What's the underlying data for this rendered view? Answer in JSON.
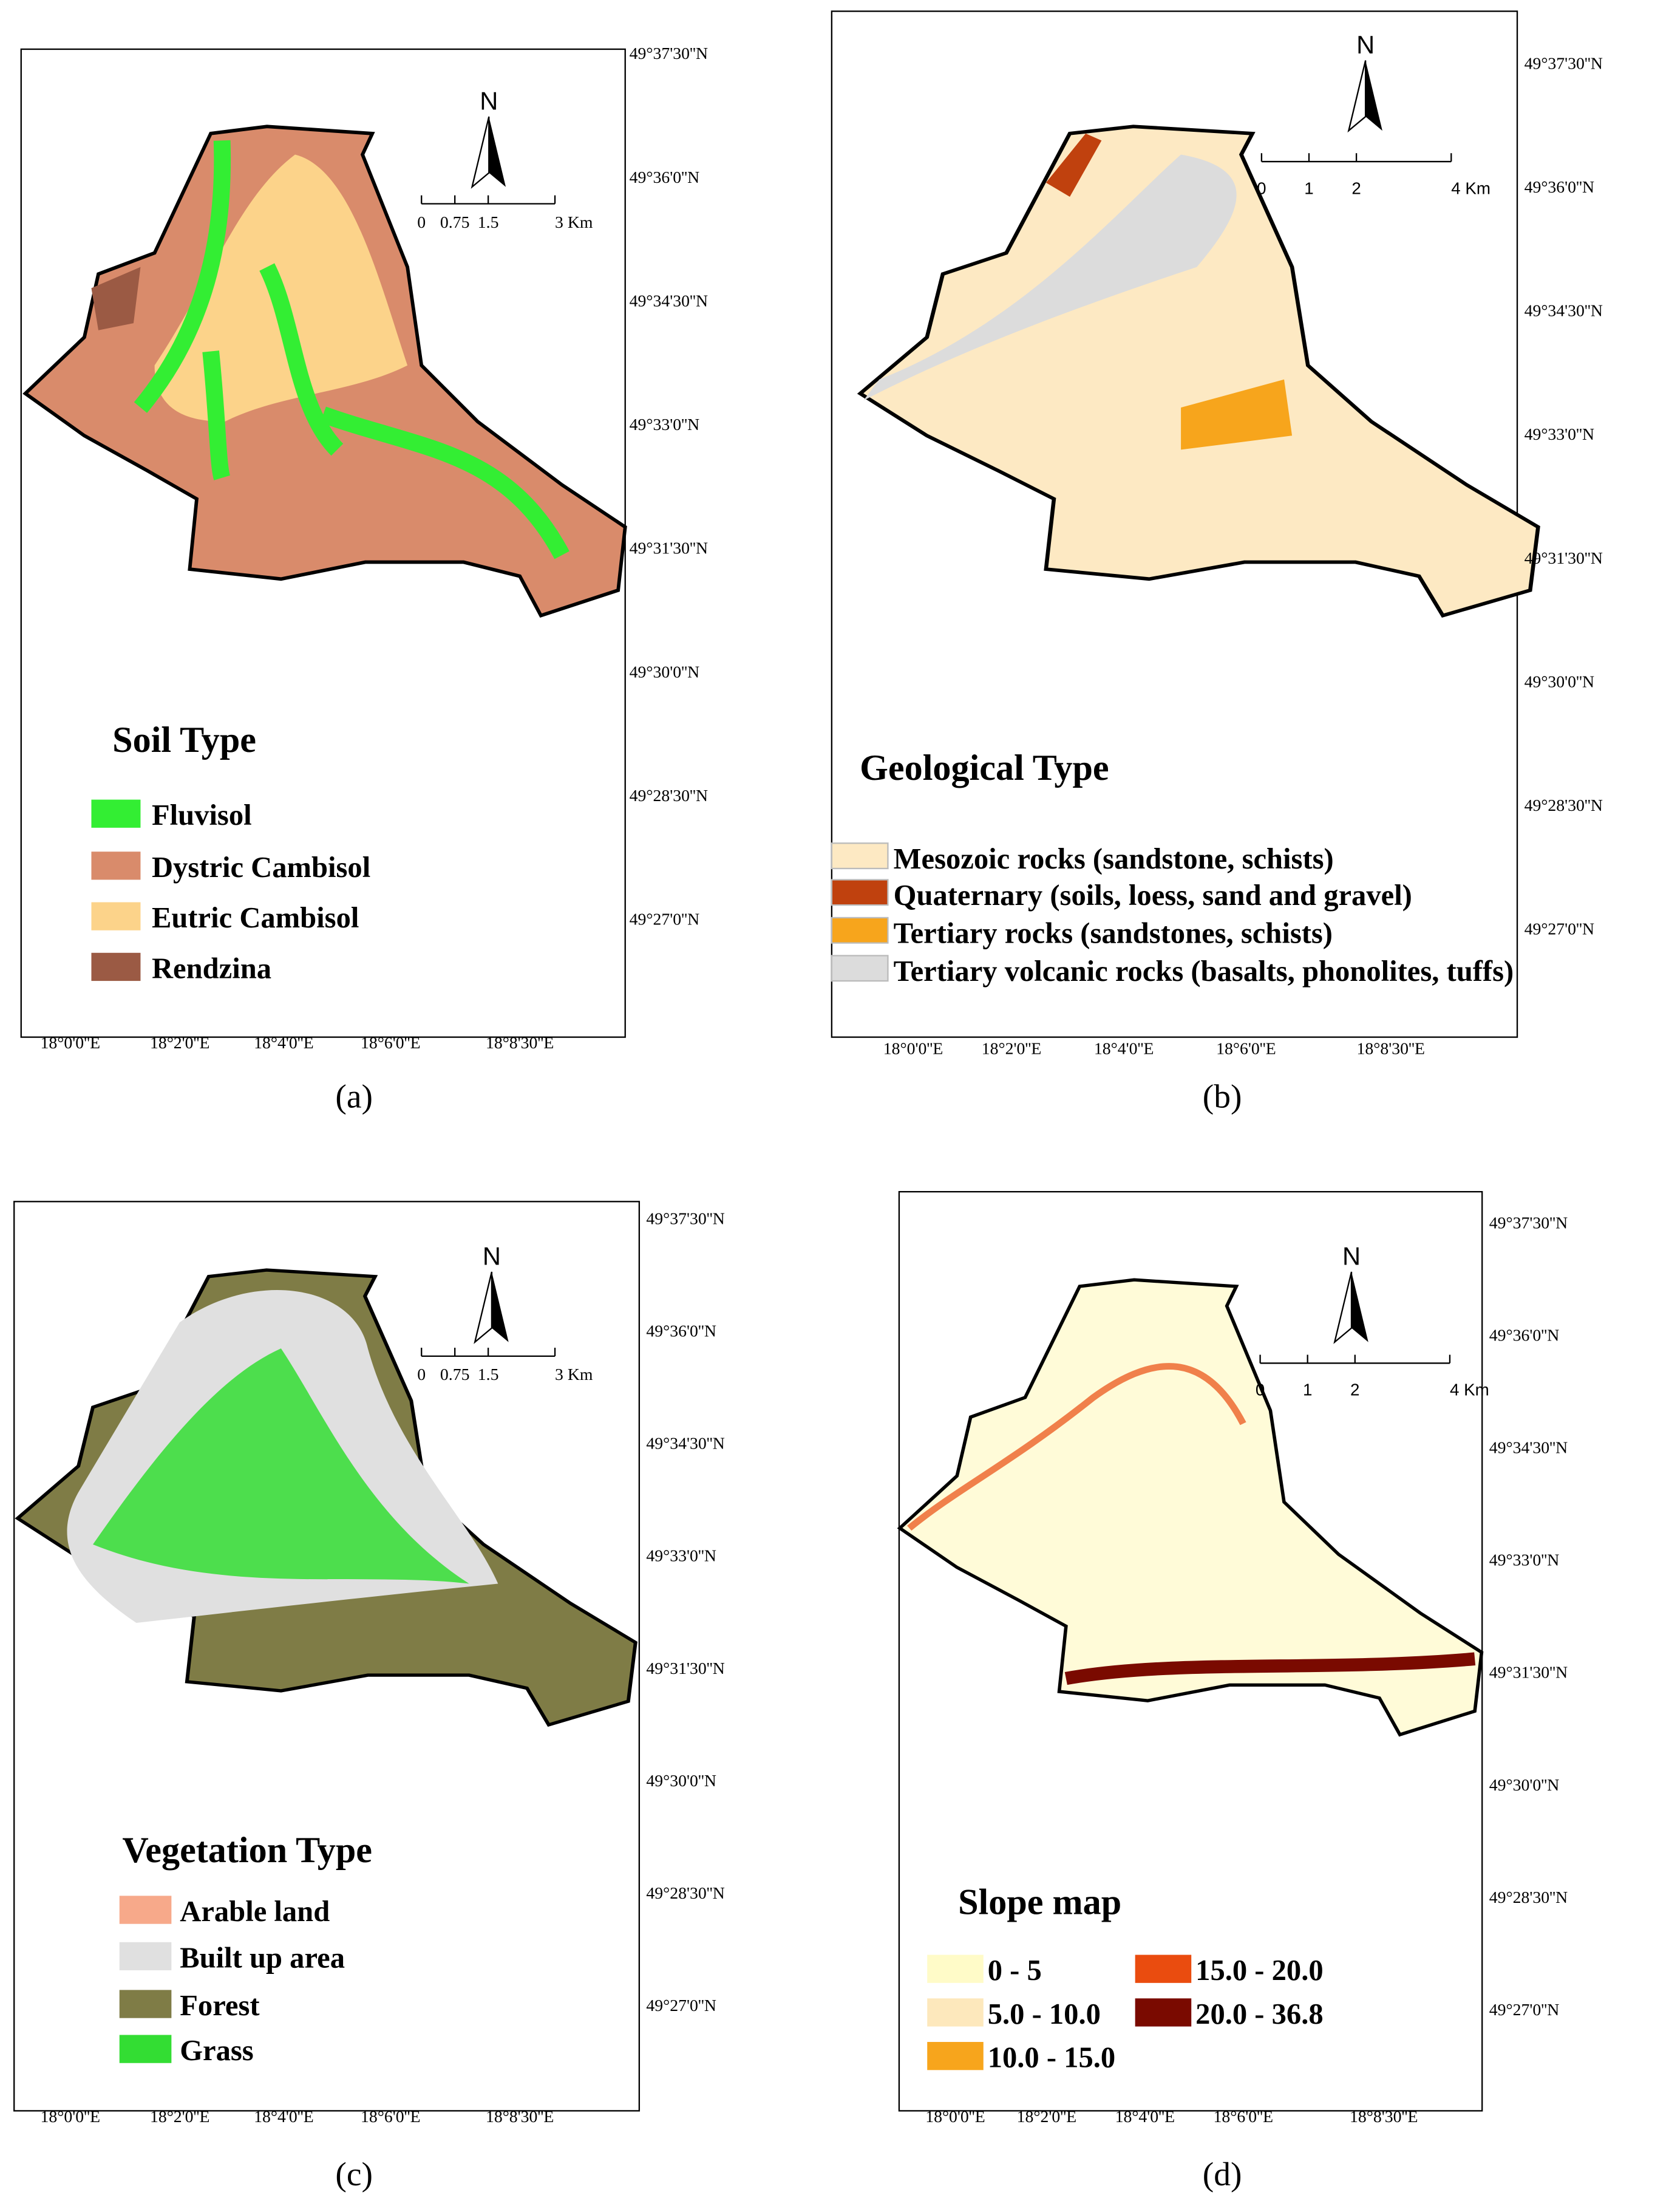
{
  "panels": [
    {
      "caption": "(a)",
      "north": "N",
      "scale_labels": [
        "0",
        "0.75",
        "1.5",
        "3 Km"
      ],
      "legend_title": "Soil Type",
      "legend": [
        {
          "label": "Fluvisol",
          "color": "#33ee33"
        },
        {
          "label": "Dystric Cambisol",
          "color": "#d98b6b"
        },
        {
          "label": "Eutric Cambisol",
          "color": "#fcd38a"
        },
        {
          "label": "Rendzina",
          "color": "#9b5a44"
        }
      ],
      "lat_labels": [
        "49°37'30''N",
        "49°36'0''N",
        "49°34'30''N",
        "49°33'0''N",
        "49°31'30''N",
        "49°30'0''N",
        "49°28'30''N",
        "49°27'0''N"
      ],
      "lon_labels": [
        "18°0'0''E",
        "18°2'0''E",
        "18°4'0''E",
        "18°6'0''E",
        "18°8'30''E"
      ]
    },
    {
      "caption": "(b)",
      "north": "N",
      "scale_labels": [
        "0",
        "1",
        "2",
        "4 Km"
      ],
      "legend_title": "Geological Type",
      "legend": [
        {
          "label": "Mesozoic rocks (sandstone, schists)",
          "color": "#fde9c3"
        },
        {
          "label": "Quaternary (soils, loess, sand and gravel)",
          "color": "#c0410e"
        },
        {
          "label": "Tertiary rocks (sandstones, schists)",
          "color": "#f7a51c"
        },
        {
          "label": "Tertiary volcanic rocks (basalts, phonolites, tuffs)",
          "color": "#dcdcdc"
        }
      ],
      "lat_labels": [
        "49°37'30''N",
        "49°36'0''N",
        "49°34'30''N",
        "49°33'0''N",
        "49°31'30''N",
        "49°30'0''N",
        "49°28'30''N",
        "49°27'0''N"
      ],
      "lon_labels": [
        "18°0'0''E",
        "18°2'0''E",
        "18°4'0''E",
        "18°6'0''E",
        "18°8'30''E"
      ]
    },
    {
      "caption": "(c)",
      "north": "N",
      "scale_labels": [
        "0",
        "0.75",
        "1.5",
        "3 Km"
      ],
      "legend_title": "Vegetation Type",
      "legend": [
        {
          "label": "Arable land",
          "color": "#f7a98a"
        },
        {
          "label": "Built up area",
          "color": "#e0e0e0"
        },
        {
          "label": "Forest",
          "color": "#7f7c46"
        },
        {
          "label": "Grass",
          "color": "#33dd33"
        }
      ],
      "lat_labels": [
        "49°37'30''N",
        "49°36'0''N",
        "49°34'30''N",
        "49°33'0''N",
        "49°31'30''N",
        "49°30'0''N",
        "49°28'30''N",
        "49°27'0''N"
      ],
      "lon_labels": [
        "18°0'0''E",
        "18°2'0''E",
        "18°4'0''E",
        "18°6'0''E",
        "18°8'30''E"
      ]
    },
    {
      "caption": "(d)",
      "north": "N",
      "scale_labels": [
        "0",
        "1",
        "2",
        "4 Km"
      ],
      "legend_title": "Slope map",
      "legend": [
        {
          "label": "0 - 5",
          "color": "#fffbc8"
        },
        {
          "label": "5.0 - 10.0",
          "color": "#fde8bc"
        },
        {
          "label": "10.0 - 15.0",
          "color": "#f7a51c"
        },
        {
          "label": "15.0 - 20.0",
          "color": "#ea4c0f"
        },
        {
          "label": "20.0 - 36.8",
          "color": "#7a0a00"
        }
      ],
      "lat_labels": [
        "49°37'30''N",
        "49°36'0''N",
        "49°34'30''N",
        "49°33'0''N",
        "49°31'30''N",
        "49°30'0''N",
        "49°28'30''N",
        "49°27'0''N"
      ],
      "lon_labels": [
        "18°0'0''E",
        "18°2'0''E",
        "18°4'0''E",
        "18°6'0''E",
        "18°8'30''E"
      ]
    }
  ]
}
